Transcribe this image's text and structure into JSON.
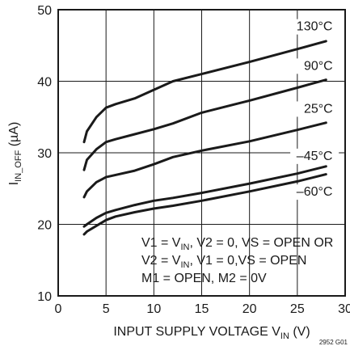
{
  "chart_data": {
    "type": "line",
    "title": "",
    "xlabel": {
      "main": "INPUT SUPPLY VOLTAGE V",
      "sub": "IN",
      "tail": " (V)"
    },
    "ylabel": {
      "main": "I",
      "sub": "IN_OFF",
      "tail": " (µA)"
    },
    "xlim": [
      0,
      30
    ],
    "ylim": [
      10,
      50
    ],
    "xticks": [
      0,
      5,
      10,
      15,
      20,
      25,
      30
    ],
    "yticks": [
      10,
      20,
      30,
      40,
      50
    ],
    "grid": true,
    "series": [
      {
        "name": "130°C",
        "x": [
          2.7,
          3,
          4,
          5,
          6,
          8,
          10,
          12,
          15,
          20,
          25,
          28
        ],
        "y": [
          31.5,
          33,
          35,
          36.3,
          36.8,
          37.6,
          38.8,
          40.0,
          41.0,
          42.7,
          44.5,
          45.6
        ]
      },
      {
        "name": "90°C",
        "x": [
          2.7,
          3,
          4,
          5,
          6,
          8,
          10,
          12,
          15,
          20,
          25,
          28
        ],
        "y": [
          27.6,
          29,
          30.5,
          31.5,
          31.9,
          32.6,
          33.3,
          34.1,
          35.6,
          37.3,
          39.1,
          40.2
        ]
      },
      {
        "name": "25°C",
        "x": [
          2.7,
          3,
          4,
          5,
          6,
          8,
          10,
          12,
          15,
          20,
          25,
          28
        ],
        "y": [
          23.8,
          24.6,
          25.9,
          26.6,
          26.9,
          27.5,
          28.4,
          29.4,
          30.3,
          31.6,
          33.2,
          34.2
        ]
      },
      {
        "name": "–45°C",
        "x": [
          2.7,
          3,
          4,
          5,
          6,
          8,
          10,
          12,
          15,
          20,
          25,
          28
        ],
        "y": [
          19.7,
          20.0,
          20.9,
          21.6,
          22.0,
          22.7,
          23.3,
          23.7,
          24.4,
          25.7,
          27.1,
          28.1
        ]
      },
      {
        "name": "–60°C",
        "x": [
          2.7,
          3,
          4,
          5,
          6,
          8,
          10,
          12,
          15,
          20,
          25,
          28
        ],
        "y": [
          18.6,
          19.0,
          19.8,
          20.6,
          21.1,
          21.7,
          22.2,
          22.6,
          23.3,
          24.6,
          26.0,
          27.0
        ]
      }
    ],
    "annotations": [
      {
        "main": "V1 = V",
        "sub": "IN",
        "tail": ", V2 = 0, VS = OPEN OR"
      },
      {
        "main": "V2 = V",
        "sub": "IN",
        "tail": ", V1 = 0,VS = OPEN"
      },
      {
        "main": "M1 = OPEN, M2 = 0V",
        "sub": "",
        "tail": ""
      }
    ],
    "figure_code": "2952 G01"
  }
}
